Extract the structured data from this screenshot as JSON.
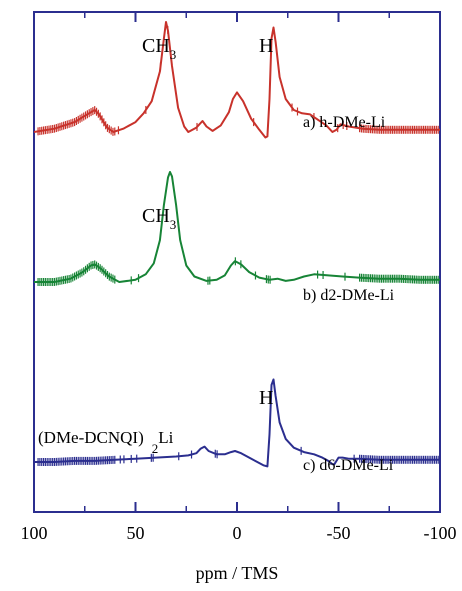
{
  "chart_data": {
    "type": "line",
    "xlabel": "ppm / TMS",
    "x_ticks": [
      100,
      50,
      0,
      -50,
      -100
    ],
    "xlim": [
      100,
      -100
    ],
    "x_reversed": true,
    "colors": {
      "frame": "#2b2e8f",
      "h": "#c8322b",
      "d2": "#178436",
      "d6": "#2b2e8f"
    },
    "annotations": {
      "ch3_top": "CH",
      "ch3_top_sub": "3",
      "h_top": "H",
      "ch3_mid": "CH",
      "ch3_mid_sub": "3",
      "h_bottom": "H",
      "compound_main": "(DMe-DCNQI)",
      "compound_sub": "2",
      "compound_end": "Li"
    },
    "series": [
      {
        "name": "a) h-DMe-Li",
        "color": "#c8322b",
        "offset": 0.76,
        "points": [
          [
            100,
            0.0
          ],
          [
            90,
            0.03
          ],
          [
            80,
            0.09
          ],
          [
            72,
            0.18
          ],
          [
            70,
            0.2
          ],
          [
            68,
            0.16
          ],
          [
            64,
            0.04
          ],
          [
            61,
            0.0
          ],
          [
            56,
            0.03
          ],
          [
            50,
            0.09
          ],
          [
            46,
            0.17
          ],
          [
            42,
            0.28
          ],
          [
            38,
            0.55
          ],
          [
            36,
            0.85
          ],
          [
            35,
            1.0
          ],
          [
            34,
            0.92
          ],
          [
            32,
            0.6
          ],
          [
            29,
            0.22
          ],
          [
            26,
            0.05
          ],
          [
            24,
            0.0
          ],
          [
            20,
            0.04
          ],
          [
            17,
            0.1
          ],
          [
            15,
            0.05
          ],
          [
            12,
            0.01
          ],
          [
            8,
            0.06
          ],
          [
            4,
            0.18
          ],
          [
            2,
            0.3
          ],
          [
            0,
            0.36
          ],
          [
            -3,
            0.28
          ],
          [
            -7,
            0.12
          ],
          [
            -11,
            0.02
          ],
          [
            -14,
            -0.05
          ],
          [
            -15,
            -0.04
          ],
          [
            -16,
            0.3
          ],
          [
            -17,
            0.85
          ],
          [
            -18,
            0.95
          ],
          [
            -19,
            0.82
          ],
          [
            -21,
            0.5
          ],
          [
            -24,
            0.3
          ],
          [
            -28,
            0.2
          ],
          [
            -32,
            0.17
          ],
          [
            -36,
            0.16
          ],
          [
            -40,
            0.11
          ],
          [
            -44,
            0.06
          ],
          [
            -47,
            0.0
          ],
          [
            -49,
            0.02
          ],
          [
            -51,
            0.07
          ],
          [
            -55,
            0.05
          ],
          [
            -62,
            0.03
          ],
          [
            -70,
            0.02
          ],
          [
            -80,
            0.02
          ],
          [
            -90,
            0.02
          ],
          [
            -100,
            0.02
          ]
        ]
      },
      {
        "name": "b) d2-DMe-Li",
        "color": "#178436",
        "offset": 0.46,
        "points": [
          [
            100,
            0.0
          ],
          [
            90,
            0.0
          ],
          [
            82,
            0.03
          ],
          [
            76,
            0.09
          ],
          [
            72,
            0.15
          ],
          [
            70,
            0.16
          ],
          [
            67,
            0.12
          ],
          [
            63,
            0.05
          ],
          [
            58,
            0.0
          ],
          [
            50,
            0.02
          ],
          [
            45,
            0.07
          ],
          [
            41,
            0.17
          ],
          [
            38,
            0.38
          ],
          [
            36,
            0.7
          ],
          [
            34,
            0.95
          ],
          [
            33,
            1.0
          ],
          [
            32,
            0.96
          ],
          [
            30,
            0.7
          ],
          [
            28,
            0.38
          ],
          [
            25,
            0.15
          ],
          [
            21,
            0.05
          ],
          [
            15,
            0.01
          ],
          [
            10,
            0.02
          ],
          [
            6,
            0.06
          ],
          [
            3,
            0.15
          ],
          [
            1,
            0.19
          ],
          [
            -2,
            0.16
          ],
          [
            -6,
            0.09
          ],
          [
            -11,
            0.04
          ],
          [
            -16,
            0.02
          ],
          [
            -20,
            0.03
          ],
          [
            -24,
            0.01
          ],
          [
            -28,
            0.02
          ],
          [
            -33,
            0.05
          ],
          [
            -38,
            0.07
          ],
          [
            -45,
            0.06
          ],
          [
            -52,
            0.05
          ],
          [
            -60,
            0.04
          ],
          [
            -70,
            0.03
          ],
          [
            -80,
            0.03
          ],
          [
            -90,
            0.02
          ],
          [
            -100,
            0.02
          ]
        ]
      },
      {
        "name": "c) d6-DMe-Li",
        "color": "#2b2e8f",
        "offset": 0.1,
        "points": [
          [
            100,
            0.0
          ],
          [
            90,
            0.0
          ],
          [
            80,
            0.01
          ],
          [
            70,
            0.01
          ],
          [
            60,
            0.02
          ],
          [
            50,
            0.03
          ],
          [
            40,
            0.04
          ],
          [
            30,
            0.05
          ],
          [
            24,
            0.06
          ],
          [
            20,
            0.08
          ],
          [
            18,
            0.12
          ],
          [
            16,
            0.14
          ],
          [
            14,
            0.1
          ],
          [
            10,
            0.07
          ],
          [
            6,
            0.07
          ],
          [
            3,
            0.09
          ],
          [
            1,
            0.1
          ],
          [
            -2,
            0.08
          ],
          [
            -6,
            0.04
          ],
          [
            -10,
            0.0
          ],
          [
            -13,
            -0.03
          ],
          [
            -15,
            -0.04
          ],
          [
            -16,
            0.25
          ],
          [
            -17,
            0.7
          ],
          [
            -18,
            0.75
          ],
          [
            -19,
            0.6
          ],
          [
            -21,
            0.36
          ],
          [
            -24,
            0.21
          ],
          [
            -28,
            0.13
          ],
          [
            -33,
            0.09
          ],
          [
            -38,
            0.07
          ],
          [
            -42,
            0.04
          ],
          [
            -45,
            0.01
          ],
          [
            -47,
            -0.02
          ],
          [
            -48,
            -0.02
          ],
          [
            -50,
            0.04
          ],
          [
            -52,
            0.04
          ],
          [
            -55,
            0.03
          ],
          [
            -60,
            0.03
          ],
          [
            -70,
            0.02
          ],
          [
            -80,
            0.02
          ],
          [
            -90,
            0.02
          ],
          [
            -100,
            0.02
          ]
        ]
      }
    ]
  }
}
